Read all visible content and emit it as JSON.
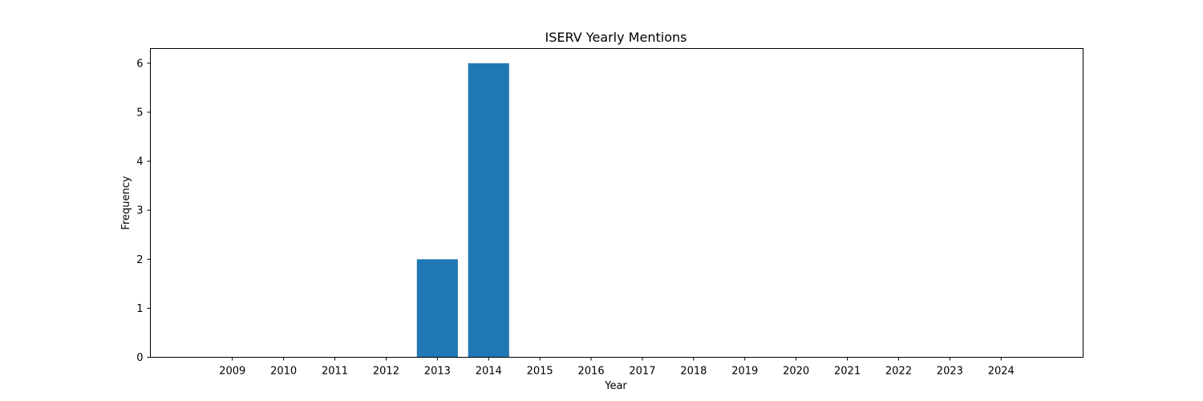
{
  "chart_data": {
    "type": "bar",
    "title": "ISERV Yearly Mentions",
    "xlabel": "Year",
    "ylabel": "Frequency",
    "categories": [
      "2009",
      "2010",
      "2011",
      "2012",
      "2013",
      "2014",
      "2015",
      "2016",
      "2017",
      "2018",
      "2019",
      "2020",
      "2021",
      "2022",
      "2023",
      "2024"
    ],
    "values": [
      0,
      0,
      0,
      0,
      2,
      6,
      0,
      0,
      0,
      0,
      0,
      0,
      0,
      0,
      0,
      0
    ],
    "yticks": [
      0,
      1,
      2,
      3,
      4,
      5,
      6
    ],
    "ylim": [
      0,
      6.3
    ],
    "grid": false,
    "bar_color": "#1f77b4"
  }
}
